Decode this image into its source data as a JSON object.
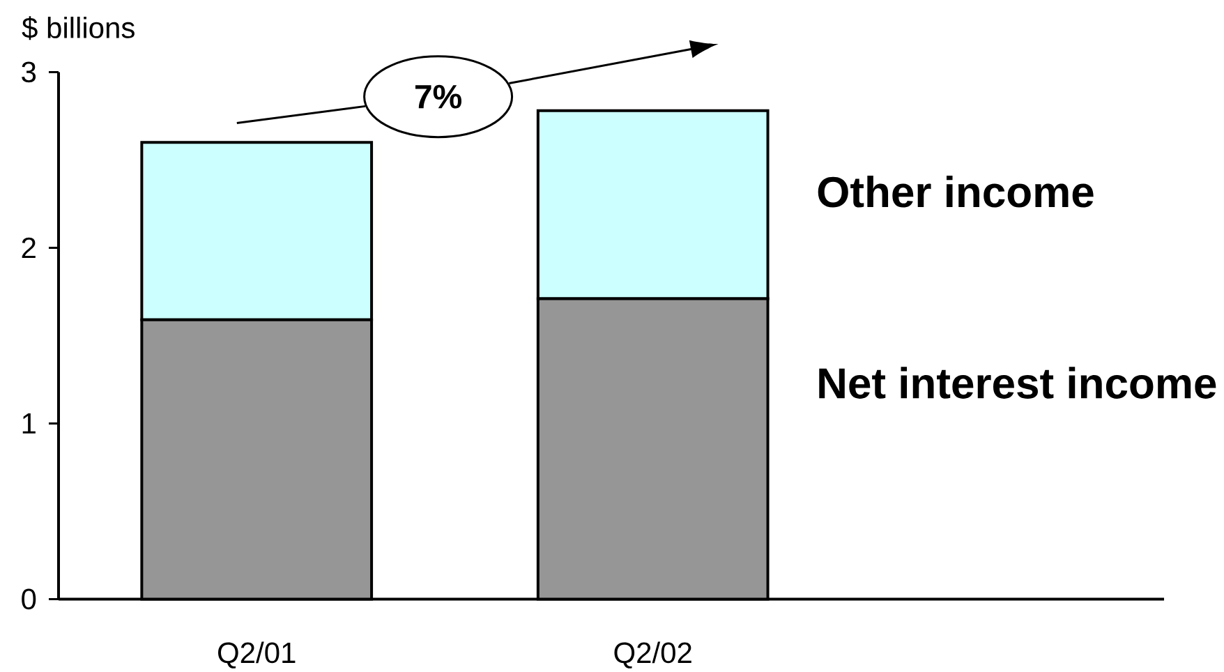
{
  "chart_data": {
    "type": "bar",
    "stacked": true,
    "ylabel": "$ billions",
    "categories": [
      "Q2/01",
      "Q2/02"
    ],
    "series": [
      {
        "name": "Net interest income",
        "color": "#969696",
        "values": [
          1.59,
          1.71
        ]
      },
      {
        "name": "Other income",
        "color": "#ccffff",
        "values": [
          1.01,
          1.07
        ]
      }
    ],
    "ylim": [
      0,
      3
    ],
    "yticks": [
      0,
      1,
      2,
      3
    ],
    "annotations": [
      "7%"
    ]
  }
}
